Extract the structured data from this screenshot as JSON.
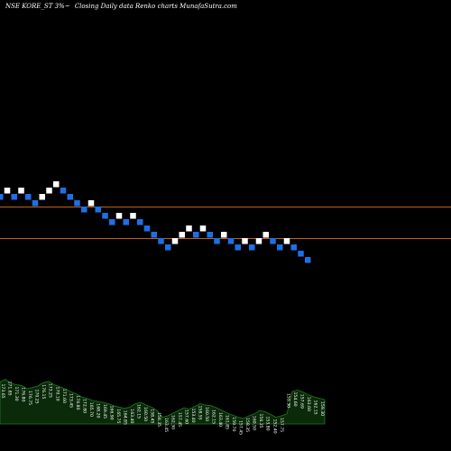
{
  "header": {
    "symbol": "NSE KORE_ST 3%~",
    "subtitle": "Closing Daily data  Renko  charts  MunafaSutra.com"
  },
  "colors": {
    "background": "#000000",
    "up_brick": "#ffffff",
    "down_brick": "#1e6fe6",
    "reference_line": "#c0601e",
    "volume_fill": "#0a2a0a",
    "volume_line": "#1e7a1e",
    "volume_text": "#ffffff"
  },
  "chart_data": {
    "type": "renko",
    "title": "",
    "brick_directions": [
      "down",
      "up",
      "down",
      "up",
      "down",
      "down",
      "up",
      "up",
      "up",
      "down",
      "down",
      "down",
      "down",
      "up",
      "down",
      "down",
      "down",
      "up",
      "down",
      "up",
      "down",
      "down",
      "down",
      "down",
      "down",
      "up",
      "up",
      "up",
      "down",
      "up",
      "down",
      "down",
      "up",
      "down",
      "down",
      "up",
      "down",
      "up",
      "up",
      "down",
      "down",
      "up",
      "down",
      "down",
      "down"
    ],
    "reference_lines": [
      "upper",
      "lower"
    ],
    "volume_labels": [
      "173.65",
      "171.85",
      "171.30",
      "176.80",
      "176.75",
      "170.25",
      "176.15",
      "173.25",
      "170.10",
      "171.60",
      "173.45",
      "174.80",
      "172.80",
      "165.70",
      "168.20",
      "169.45",
      "166.90",
      "165.75",
      "164.85",
      "163.40",
      "162.15",
      "160.50",
      "158.45",
      "158.35",
      "163.45",
      "162.30",
      "157.45",
      "157.60",
      "153.40",
      "158.55",
      "160.50",
      "162.15",
      "163.40",
      "161.85",
      "159.70",
      "157.45",
      "158.35",
      "160.50",
      "156.35",
      "153.80",
      "152.40",
      "157.75",
      "159.30",
      "154.60",
      "157.69",
      "163.60",
      "162.15",
      "159.30"
    ],
    "volume_levels": [
      0.62,
      0.66,
      0.6,
      0.58,
      0.57,
      0.52,
      0.54,
      0.56,
      0.61,
      0.63,
      0.58,
      0.55,
      0.52,
      0.48,
      0.45,
      0.4,
      0.38,
      0.35,
      0.33,
      0.32,
      0.3,
      0.27,
      0.25,
      0.23,
      0.25,
      0.3,
      0.32,
      0.28,
      0.25,
      0.2,
      0.1,
      0.12,
      0.16,
      0.2,
      0.24,
      0.22,
      0.26,
      0.3,
      0.28,
      0.27,
      0.24,
      0.2,
      0.16,
      0.13,
      0.1,
      0.08,
      0.12,
      0.15,
      0.2,
      0.18,
      0.14,
      0.1,
      0.12,
      0.15,
      0.48,
      0.5,
      0.47,
      0.43,
      0.4,
      0.38,
      0.36
    ]
  }
}
